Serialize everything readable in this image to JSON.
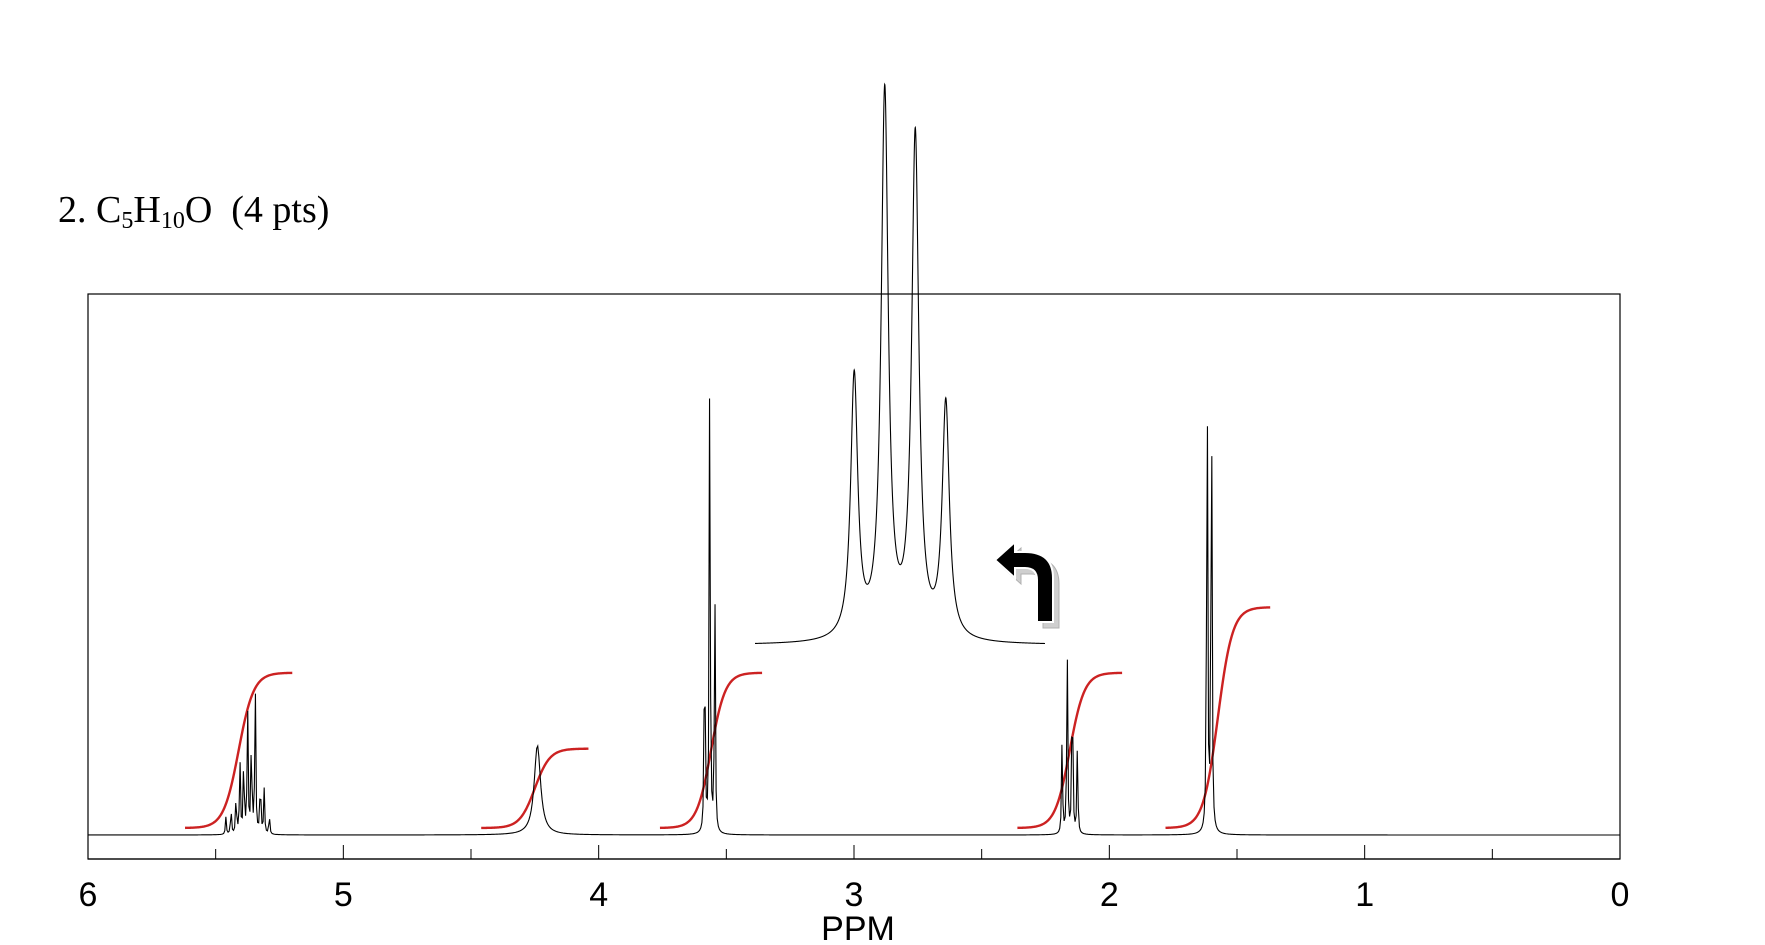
{
  "problem": {
    "number": "2.",
    "formula_parts": [
      "C",
      "5",
      "H",
      "10",
      "O"
    ],
    "points": "(4 pts)"
  },
  "chart_data": {
    "type": "line",
    "title": "",
    "xlabel": "PPM",
    "ylabel": "",
    "xlim": [
      6,
      0
    ],
    "x_reversed": true,
    "ticks": [
      "6",
      "5",
      "4",
      "3",
      "2",
      "1",
      "0"
    ],
    "grid": false,
    "line_color": "#000000",
    "integral_color": "#cc2222",
    "peaks": [
      {
        "shift": 5.38,
        "multiplicity": "multiplet",
        "lines": [
          {
            "x": 5.46,
            "h": 0.05
          },
          {
            "x": 5.44,
            "h": 0.08
          },
          {
            "x": 5.42,
            "h": 0.12
          },
          {
            "x": 5.405,
            "h": 0.22
          },
          {
            "x": 5.39,
            "h": 0.24
          },
          {
            "x": 5.375,
            "h": 0.38
          },
          {
            "x": 5.36,
            "h": 0.3
          },
          {
            "x": 5.345,
            "h": 0.44
          },
          {
            "x": 5.325,
            "h": 0.18
          },
          {
            "x": 5.31,
            "h": 0.13
          },
          {
            "x": 5.29,
            "h": 0.06
          }
        ]
      },
      {
        "shift": 4.24,
        "multiplicity": "broad singlet",
        "lines": [
          {
            "x": 4.24,
            "h": 0.26,
            "width": 0.015
          }
        ]
      },
      {
        "shift": 3.56,
        "multiplicity": "triplet",
        "lines": [
          {
            "x": 3.585,
            "h": 0.68
          },
          {
            "x": 3.565,
            "h": 1.38
          },
          {
            "x": 3.545,
            "h": 0.72
          }
        ]
      },
      {
        "shift": 2.15,
        "multiplicity": "quartet",
        "lines": [
          {
            "x": 2.185,
            "h": 0.28
          },
          {
            "x": 2.165,
            "h": 0.55
          },
          {
            "x": 2.145,
            "h": 0.53
          },
          {
            "x": 2.125,
            "h": 0.26
          }
        ]
      },
      {
        "shift": 1.61,
        "multiplicity": "doublet",
        "lines": [
          {
            "x": 1.617,
            "h": 1.55
          },
          {
            "x": 1.6,
            "h": 1.53
          }
        ]
      }
    ],
    "inset": {
      "expands_peak_shift": 2.15,
      "lines": [
        {
          "x": 2.185,
          "h": 0.48
        },
        {
          "x": 2.165,
          "h": 1.0
        },
        {
          "x": 2.145,
          "h": 0.92
        },
        {
          "x": 2.125,
          "h": 0.43
        }
      ]
    },
    "integrals": [
      {
        "from": 5.62,
        "to": 5.2,
        "rise": 0.45
      },
      {
        "from": 4.46,
        "to": 4.04,
        "rise": 0.23
      },
      {
        "from": 3.76,
        "to": 3.36,
        "rise": 0.45
      },
      {
        "from": 2.36,
        "to": 1.95,
        "rise": 0.45
      },
      {
        "from": 1.78,
        "to": 1.37,
        "rise": 0.64
      }
    ]
  },
  "icons": {
    "inset_arrow": "curved-return-arrow-icon"
  }
}
